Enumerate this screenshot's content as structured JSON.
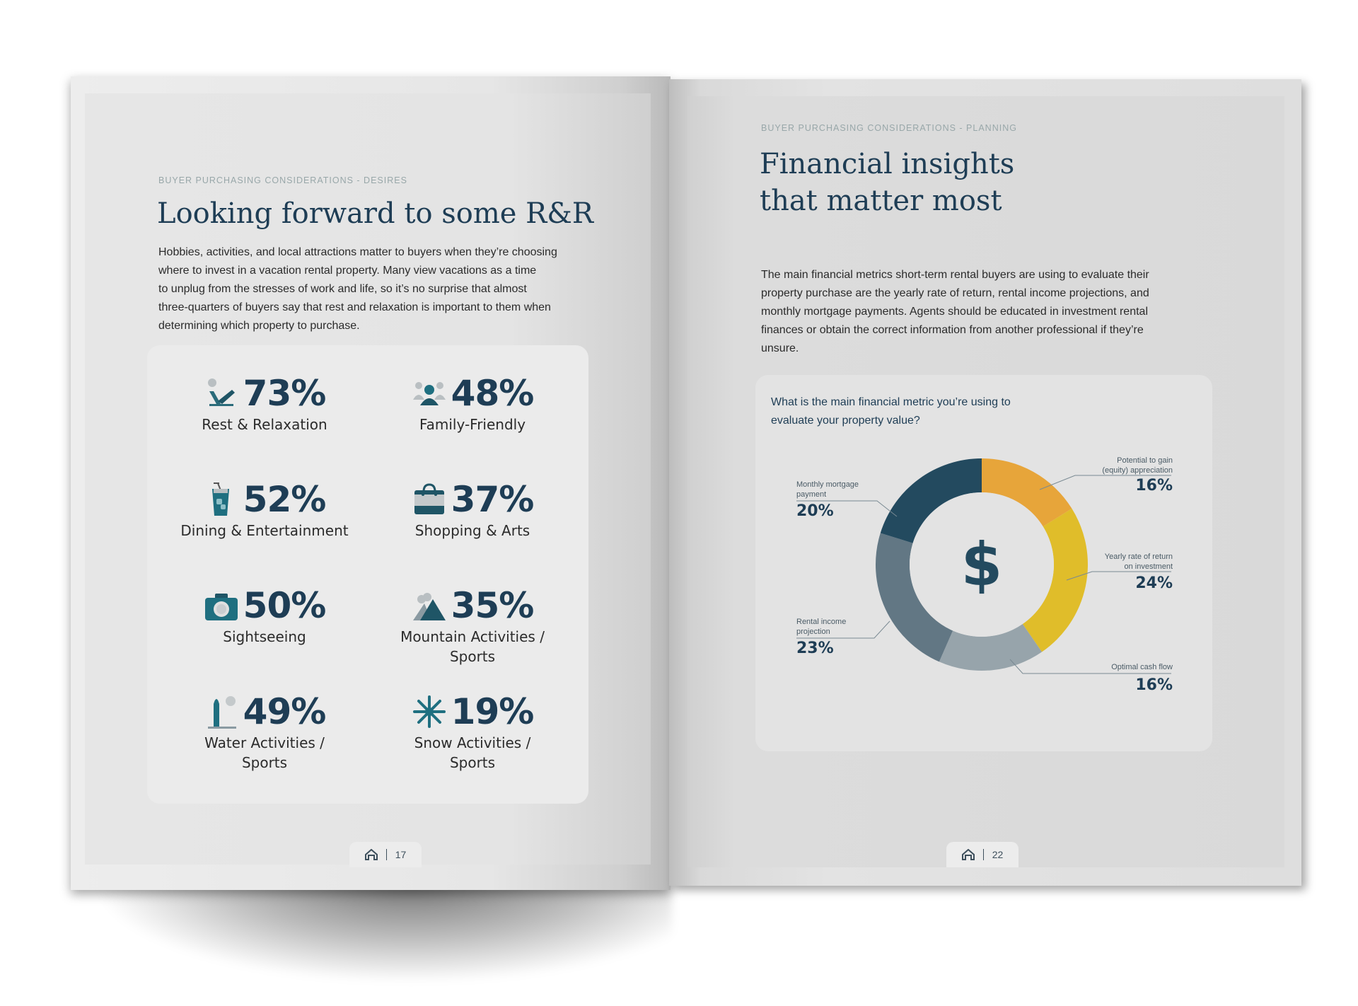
{
  "left_page": {
    "kicker": "BUYER PURCHASING CONSIDERATIONS - DESIRES",
    "title": "Looking forward to some R&R",
    "body": [
      "Hobbies, activities, and local attractions matter to buyers when they’re choosing",
      "where to invest in a vacation rental property. Many view vacations as a time",
      "to unplug from the stresses of work and life, so it’s no surprise that almost",
      "three-quarters of buyers say that rest and relaxation is important to them when",
      "determining which property to purchase."
    ],
    "stats": [
      {
        "icon": "beach-chair-icon",
        "percent": "73%",
        "label": [
          "Rest & Relaxation"
        ]
      },
      {
        "icon": "family-icon",
        "percent": "48%",
        "label": [
          "Family-Friendly"
        ]
      },
      {
        "icon": "drink-icon",
        "percent": "52%",
        "label": [
          "Dining & Entertainment"
        ]
      },
      {
        "icon": "shopping-bag-icon",
        "percent": "37%",
        "label": [
          "Shopping & Arts"
        ]
      },
      {
        "icon": "camera-icon",
        "percent": "50%",
        "label": [
          "Sightseeing"
        ]
      },
      {
        "icon": "mountain-icon",
        "percent": "35%",
        "label": [
          "Mountain Activities /",
          "Sports"
        ]
      },
      {
        "icon": "surfboard-icon",
        "percent": "49%",
        "label": [
          "Water Activities /",
          "Sports"
        ]
      },
      {
        "icon": "snowflake-icon",
        "percent": "19%",
        "label": [
          "Snow Activities /",
          "Sports"
        ]
      }
    ],
    "page_number": "17"
  },
  "right_page": {
    "kicker": "BUYER PURCHASING CONSIDERATIONS - PLANNING",
    "title": [
      "Financial insights",
      "that matter most"
    ],
    "body": [
      "The main financial metrics short-term rental buyers are using to evaluate their",
      "property purchase are the yearly rate of return, rental income projections, and",
      "monthly mortgage payments. Agents should be educated in investment rental",
      "finances or obtain the correct information from another professional if they’re",
      "unsure."
    ],
    "question": [
      "What is the main financial metric you’re using to",
      "evaluate your property value?"
    ],
    "center_icon": "dollar-sign-icon",
    "center_glyph": "$",
    "page_number": "22"
  },
  "chart_data": {
    "type": "pie",
    "donut": true,
    "title": "What is the main financial metric you’re using to evaluate your property value?",
    "slices": [
      {
        "label": "Potential to gain (equity) appreciation",
        "label_lines": [
          "Potential to gain",
          "(equity) appreciation"
        ],
        "value": 16,
        "display": "16%",
        "color": "#e7a53a"
      },
      {
        "label": "Yearly rate of return on investment",
        "label_lines": [
          "Yearly rate of return",
          "on investment"
        ],
        "value": 24,
        "display": "24%",
        "color": "#e0bd2a"
      },
      {
        "label": "Optimal cash flow",
        "label_lines": [
          "Optimal cash flow"
        ],
        "value": 16,
        "display": "16%",
        "color": "#97a4ab"
      },
      {
        "label": "Rental income projection",
        "label_lines": [
          "Rental income",
          "projection"
        ],
        "value": 23,
        "display": "23%",
        "color": "#627784"
      },
      {
        "label": "Monthly mortgage payment",
        "label_lines": [
          "Monthly mortgage",
          "payment"
        ],
        "value": 20,
        "display": "20%",
        "color": "#234a5f"
      }
    ]
  },
  "colors": {
    "navy": "#1e3d55",
    "teal": "#1f6f80",
    "kicker": "#98a7a9"
  }
}
